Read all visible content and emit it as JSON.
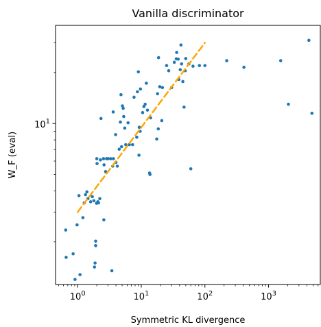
{
  "chart_data": {
    "type": "scatter",
    "title": "Vanilla discriminator",
    "xlabel": "Symmetric KL divergence",
    "ylabel": "W_F (eval)",
    "xscale": "log",
    "yscale": "log",
    "xlim": [
      0.45,
      6500
    ],
    "ylim": [
      1.12,
      38
    ],
    "grid": false,
    "x_ticks": [
      {
        "value": 1,
        "base": "10",
        "exp": "0"
      },
      {
        "value": 10,
        "base": "10",
        "exp": "1"
      },
      {
        "value": 100,
        "base": "10",
        "exp": "2"
      },
      {
        "value": 1000,
        "base": "10",
        "exp": "3"
      }
    ],
    "y_ticks": [
      {
        "value": 10,
        "base": "10",
        "exp": "1"
      }
    ],
    "colors": {
      "points": "#1f77b4",
      "fit": "#ffa500"
    },
    "fit_line": {
      "style": "dashed",
      "x": [
        1,
        100
      ],
      "y": [
        3.0,
        30.0
      ]
    },
    "points": [
      {
        "x": 0.65,
        "y": 2.35
      },
      {
        "x": 0.66,
        "y": 1.62
      },
      {
        "x": 0.85,
        "y": 1.7
      },
      {
        "x": 0.91,
        "y": 1.2
      },
      {
        "x": 0.98,
        "y": 2.52
      },
      {
        "x": 1.05,
        "y": 3.75
      },
      {
        "x": 1.09,
        "y": 1.28
      },
      {
        "x": 1.21,
        "y": 2.78
      },
      {
        "x": 1.27,
        "y": 3.4
      },
      {
        "x": 1.33,
        "y": 3.8
      },
      {
        "x": 1.4,
        "y": 3.95
      },
      {
        "x": 1.45,
        "y": 3.6
      },
      {
        "x": 1.6,
        "y": 3.45
      },
      {
        "x": 1.7,
        "y": 3.7
      },
      {
        "x": 1.8,
        "y": 3.5
      },
      {
        "x": 1.84,
        "y": 1.42
      },
      {
        "x": 1.88,
        "y": 1.5
      },
      {
        "x": 1.92,
        "y": 1.9
      },
      {
        "x": 1.92,
        "y": 2.02
      },
      {
        "x": 1.98,
        "y": 3.38
      },
      {
        "x": 2.0,
        "y": 6.2
      },
      {
        "x": 2.02,
        "y": 5.8
      },
      {
        "x": 2.08,
        "y": 3.45
      },
      {
        "x": 2.13,
        "y": 3.4
      },
      {
        "x": 2.23,
        "y": 3.6
      },
      {
        "x": 2.28,
        "y": 6.1
      },
      {
        "x": 2.33,
        "y": 10.7
      },
      {
        "x": 2.55,
        "y": 6.2
      },
      {
        "x": 2.58,
        "y": 2.7
      },
      {
        "x": 2.6,
        "y": 5.7
      },
      {
        "x": 2.75,
        "y": 5.2
      },
      {
        "x": 2.85,
        "y": 6.2
      },
      {
        "x": 3.0,
        "y": 6.2
      },
      {
        "x": 3.3,
        "y": 6.2
      },
      {
        "x": 3.45,
        "y": 1.35
      },
      {
        "x": 3.55,
        "y": 5.6
      },
      {
        "x": 3.62,
        "y": 11.7
      },
      {
        "x": 3.65,
        "y": 6.2
      },
      {
        "x": 3.95,
        "y": 8.6
      },
      {
        "x": 4.0,
        "y": 5.9
      },
      {
        "x": 4.2,
        "y": 5.6
      },
      {
        "x": 4.5,
        "y": 7.05
      },
      {
        "x": 4.7,
        "y": 10.2
      },
      {
        "x": 4.8,
        "y": 14.8
      },
      {
        "x": 4.9,
        "y": 7.3
      },
      {
        "x": 5.05,
        "y": 12.7
      },
      {
        "x": 5.2,
        "y": 12.3
      },
      {
        "x": 5.3,
        "y": 11.0
      },
      {
        "x": 5.5,
        "y": 9.4
      },
      {
        "x": 5.7,
        "y": 7.5
      },
      {
        "x": 6.2,
        "y": 10.1
      },
      {
        "x": 6.5,
        "y": 7.5
      },
      {
        "x": 7.3,
        "y": 7.5
      },
      {
        "x": 7.7,
        "y": 14.3
      },
      {
        "x": 8.5,
        "y": 8.3
      },
      {
        "x": 8.7,
        "y": 15.4
      },
      {
        "x": 9.0,
        "y": 20.2
      },
      {
        "x": 9.2,
        "y": 6.5
      },
      {
        "x": 9.3,
        "y": 9.5
      },
      {
        "x": 9.6,
        "y": 9.0
      },
      {
        "x": 9.7,
        "y": 16.0
      },
      {
        "x": 10.5,
        "y": 11.6
      },
      {
        "x": 11.0,
        "y": 12.6
      },
      {
        "x": 11.5,
        "y": 13.0
      },
      {
        "x": 12.0,
        "y": 17.3
      },
      {
        "x": 12.5,
        "y": 12.0
      },
      {
        "x": 13.5,
        "y": 5.1
      },
      {
        "x": 13.7,
        "y": 5.0
      },
      {
        "x": 14.0,
        "y": 10.8
      },
      {
        "x": 17.5,
        "y": 8.1
      },
      {
        "x": 18.0,
        "y": 15.0
      },
      {
        "x": 18.5,
        "y": 9.3
      },
      {
        "x": 18.7,
        "y": 24.5
      },
      {
        "x": 19.5,
        "y": 16.5
      },
      {
        "x": 21.0,
        "y": 10.4
      },
      {
        "x": 21.5,
        "y": 16.3
      },
      {
        "x": 25.0,
        "y": 22.0
      },
      {
        "x": 27.0,
        "y": 20.5
      },
      {
        "x": 30.0,
        "y": 16.3
      },
      {
        "x": 33.0,
        "y": 23.0
      },
      {
        "x": 35.5,
        "y": 24.1
      },
      {
        "x": 36.0,
        "y": 26.3
      },
      {
        "x": 38.0,
        "y": 24.0
      },
      {
        "x": 39.0,
        "y": 18.2
      },
      {
        "x": 41.0,
        "y": 20.8
      },
      {
        "x": 42.0,
        "y": 29.1
      },
      {
        "x": 43.0,
        "y": 22.5
      },
      {
        "x": 45.0,
        "y": 17.7
      },
      {
        "x": 47.0,
        "y": 12.5
      },
      {
        "x": 49.0,
        "y": 20.5
      },
      {
        "x": 50.0,
        "y": 24.2
      },
      {
        "x": 56.0,
        "y": 22.5
      },
      {
        "x": 60.0,
        "y": 5.4
      },
      {
        "x": 65.0,
        "y": 21.8
      },
      {
        "x": 82.0,
        "y": 22.0
      },
      {
        "x": 100.0,
        "y": 22.0
      },
      {
        "x": 220.0,
        "y": 23.5
      },
      {
        "x": 410.0,
        "y": 21.5
      },
      {
        "x": 1550.0,
        "y": 23.5
      },
      {
        "x": 2050.0,
        "y": 13.0
      },
      {
        "x": 4300.0,
        "y": 31.0
      },
      {
        "x": 4800.0,
        "y": 11.5
      }
    ]
  }
}
